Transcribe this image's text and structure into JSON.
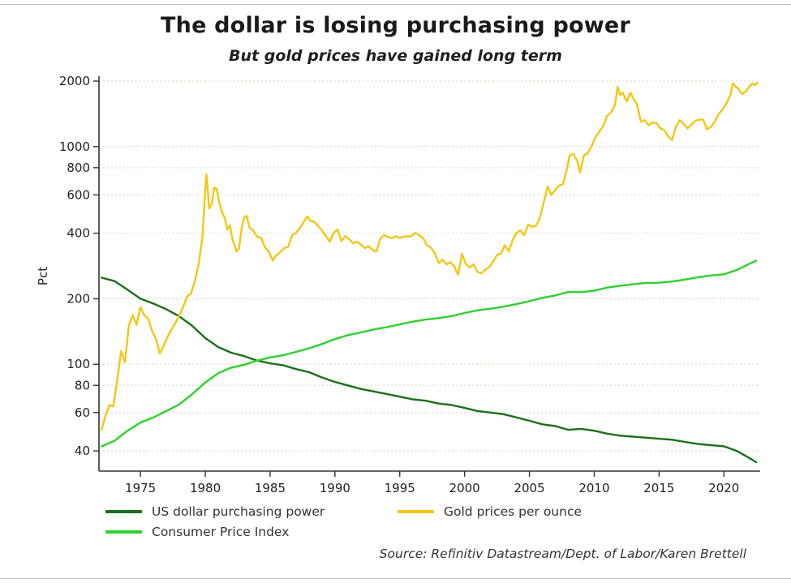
{
  "chart_data": {
    "type": "line",
    "title": "The dollar is losing purchasing power",
    "subtitle": "But gold prices have gained long term",
    "ylabel": "Pct",
    "y_scale": "log",
    "grid": "horizontal-dotted",
    "legend_position": "bottom",
    "source": "Source: Refinitiv Datastream/Dept. of Labor/Karen Brettell",
    "x_range": [
      1971.8,
      2022.8
    ],
    "y_range": [
      32.3,
      2000
    ],
    "y_ticks": [
      2000,
      1000,
      800,
      600,
      400,
      200,
      100,
      80,
      60,
      40
    ],
    "x_ticks": [
      1975,
      1980,
      1985,
      1990,
      1995,
      2000,
      2005,
      2010,
      2015,
      2020
    ],
    "series": [
      {
        "name": "US dollar purchasing power",
        "color": "#1a701a",
        "points": [
          [
            1972,
            250
          ],
          [
            1973,
            241
          ],
          [
            1974,
            220
          ],
          [
            1975,
            200
          ],
          [
            1976,
            190
          ],
          [
            1977,
            179
          ],
          [
            1978,
            166
          ],
          [
            1979,
            150
          ],
          [
            1980,
            132
          ],
          [
            1981,
            120
          ],
          [
            1982,
            113
          ],
          [
            1983,
            109
          ],
          [
            1984,
            104
          ],
          [
            1985,
            101
          ],
          [
            1986,
            99
          ],
          [
            1987,
            95
          ],
          [
            1988,
            92
          ],
          [
            1989,
            87
          ],
          [
            1990,
            83
          ],
          [
            1991,
            80
          ],
          [
            1992,
            77
          ],
          [
            1993,
            75
          ],
          [
            1994,
            73
          ],
          [
            1995,
            71
          ],
          [
            1996,
            69
          ],
          [
            1997,
            68
          ],
          [
            1998,
            66
          ],
          [
            1999,
            65
          ],
          [
            2000,
            63
          ],
          [
            2001,
            61
          ],
          [
            2002,
            60
          ],
          [
            2003,
            59
          ],
          [
            2004,
            57
          ],
          [
            2005,
            55
          ],
          [
            2006,
            53
          ],
          [
            2007,
            52
          ],
          [
            2008,
            50
          ],
          [
            2009,
            50.5
          ],
          [
            2010,
            49.5
          ],
          [
            2011,
            48
          ],
          [
            2012,
            47
          ],
          [
            2013,
            46.5
          ],
          [
            2014,
            46
          ],
          [
            2015,
            45.5
          ],
          [
            2016,
            45
          ],
          [
            2017,
            44
          ],
          [
            2018,
            43
          ],
          [
            2019,
            42.5
          ],
          [
            2020,
            42
          ],
          [
            2021,
            40
          ],
          [
            2022,
            37
          ],
          [
            2022.5,
            35.5
          ]
        ]
      },
      {
        "name": "Consumer Price Index",
        "color": "#2ed12e",
        "points": [
          [
            1972,
            42
          ],
          [
            1973,
            44.5
          ],
          [
            1974,
            49.5
          ],
          [
            1975,
            54
          ],
          [
            1976,
            57
          ],
          [
            1977,
            61
          ],
          [
            1978,
            65.5
          ],
          [
            1979,
            73
          ],
          [
            1980,
            82.5
          ],
          [
            1981,
            91
          ],
          [
            1982,
            96.5
          ],
          [
            1983,
            99.5
          ],
          [
            1984,
            104
          ],
          [
            1985,
            107.5
          ],
          [
            1986,
            110
          ],
          [
            1987,
            114
          ],
          [
            1988,
            118.5
          ],
          [
            1989,
            124
          ],
          [
            1990,
            130.5
          ],
          [
            1991,
            136
          ],
          [
            1992,
            140
          ],
          [
            1993,
            144.5
          ],
          [
            1994,
            148
          ],
          [
            1995,
            152.5
          ],
          [
            1996,
            157
          ],
          [
            1997,
            160.5
          ],
          [
            1998,
            163
          ],
          [
            1999,
            166.5
          ],
          [
            2000,
            172
          ],
          [
            2001,
            177
          ],
          [
            2002,
            180
          ],
          [
            2003,
            184
          ],
          [
            2004,
            189
          ],
          [
            2005,
            195
          ],
          [
            2006,
            202
          ],
          [
            2007,
            207
          ],
          [
            2008,
            215
          ],
          [
            2009,
            214.5
          ],
          [
            2010,
            218
          ],
          [
            2011,
            225
          ],
          [
            2012,
            229.5
          ],
          [
            2013,
            233
          ],
          [
            2014,
            236.5
          ],
          [
            2015,
            237
          ],
          [
            2016,
            240
          ],
          [
            2017,
            245
          ],
          [
            2018,
            251
          ],
          [
            2019,
            256
          ],
          [
            2020,
            259
          ],
          [
            2021,
            271
          ],
          [
            2022,
            290
          ],
          [
            2022.5,
            299
          ]
        ]
      },
      {
        "name": "Gold prices per ounce",
        "color": "#f3c713",
        "points": [
          [
            1972.0,
            50
          ],
          [
            1972.3,
            58
          ],
          [
            1972.6,
            65
          ],
          [
            1972.9,
            64
          ],
          [
            1973.2,
            84
          ],
          [
            1973.5,
            115
          ],
          [
            1973.8,
            102
          ],
          [
            1974.1,
            150
          ],
          [
            1974.4,
            168
          ],
          [
            1974.7,
            152
          ],
          [
            1975.0,
            183
          ],
          [
            1975.3,
            168
          ],
          [
            1975.6,
            162
          ],
          [
            1975.9,
            142
          ],
          [
            1976.2,
            131
          ],
          [
            1976.5,
            112
          ],
          [
            1976.8,
            122
          ],
          [
            1977.1,
            134
          ],
          [
            1977.4,
            145
          ],
          [
            1977.7,
            155
          ],
          [
            1978.0,
            168
          ],
          [
            1978.3,
            184
          ],
          [
            1978.6,
            205
          ],
          [
            1978.9,
            212
          ],
          [
            1979.2,
            242
          ],
          [
            1979.5,
            290
          ],
          [
            1979.8,
            392
          ],
          [
            1980.0,
            640
          ],
          [
            1980.1,
            745
          ],
          [
            1980.3,
            520
          ],
          [
            1980.5,
            545
          ],
          [
            1980.7,
            650
          ],
          [
            1980.9,
            635
          ],
          [
            1981.1,
            545
          ],
          [
            1981.3,
            500
          ],
          [
            1981.5,
            470
          ],
          [
            1981.7,
            415
          ],
          [
            1981.9,
            435
          ],
          [
            1982.1,
            375
          ],
          [
            1982.4,
            330
          ],
          [
            1982.6,
            340
          ],
          [
            1982.8,
            420
          ],
          [
            1983.0,
            475
          ],
          [
            1983.2,
            480
          ],
          [
            1983.4,
            425
          ],
          [
            1983.7,
            412
          ],
          [
            1984.0,
            385
          ],
          [
            1984.3,
            382
          ],
          [
            1984.6,
            345
          ],
          [
            1984.9,
            330
          ],
          [
            1985.2,
            300
          ],
          [
            1985.5,
            318
          ],
          [
            1985.8,
            328
          ],
          [
            1986.1,
            342
          ],
          [
            1986.4,
            346
          ],
          [
            1986.7,
            392
          ],
          [
            1987.0,
            402
          ],
          [
            1987.3,
            422
          ],
          [
            1987.6,
            452
          ],
          [
            1987.9,
            478
          ],
          [
            1988.1,
            455
          ],
          [
            1988.4,
            452
          ],
          [
            1988.7,
            432
          ],
          [
            1989.0,
            412
          ],
          [
            1989.3,
            388
          ],
          [
            1989.6,
            366
          ],
          [
            1989.9,
            402
          ],
          [
            1990.2,
            416
          ],
          [
            1990.5,
            368
          ],
          [
            1990.8,
            388
          ],
          [
            1991.1,
            376
          ],
          [
            1991.4,
            360
          ],
          [
            1991.7,
            366
          ],
          [
            1992.0,
            355
          ],
          [
            1992.3,
            342
          ],
          [
            1992.6,
            348
          ],
          [
            1992.9,
            335
          ],
          [
            1993.2,
            330
          ],
          [
            1993.5,
            378
          ],
          [
            1993.8,
            392
          ],
          [
            1994.1,
            384
          ],
          [
            1994.4,
            379
          ],
          [
            1994.7,
            388
          ],
          [
            1995.0,
            380
          ],
          [
            1995.3,
            386
          ],
          [
            1995.6,
            387
          ],
          [
            1995.9,
            388
          ],
          [
            1996.2,
            402
          ],
          [
            1996.5,
            392
          ],
          [
            1996.8,
            380
          ],
          [
            1997.1,
            352
          ],
          [
            1997.4,
            344
          ],
          [
            1997.7,
            324
          ],
          [
            1998.0,
            292
          ],
          [
            1998.3,
            302
          ],
          [
            1998.6,
            288
          ],
          [
            1998.9,
            294
          ],
          [
            1999.2,
            282
          ],
          [
            1999.5,
            258
          ],
          [
            1999.8,
            322
          ],
          [
            2000.1,
            288
          ],
          [
            2000.4,
            278
          ],
          [
            2000.7,
            288
          ],
          [
            2001.0,
            266
          ],
          [
            2001.3,
            262
          ],
          [
            2001.6,
            272
          ],
          [
            2001.9,
            279
          ],
          [
            2002.2,
            296
          ],
          [
            2002.5,
            318
          ],
          [
            2002.8,
            322
          ],
          [
            2003.1,
            352
          ],
          [
            2003.4,
            330
          ],
          [
            2003.7,
            372
          ],
          [
            2004.0,
            402
          ],
          [
            2004.3,
            412
          ],
          [
            2004.6,
            392
          ],
          [
            2004.9,
            438
          ],
          [
            2005.2,
            428
          ],
          [
            2005.5,
            432
          ],
          [
            2005.8,
            468
          ],
          [
            2006.1,
            552
          ],
          [
            2006.4,
            655
          ],
          [
            2006.7,
            600
          ],
          [
            2007.0,
            635
          ],
          [
            2007.3,
            662
          ],
          [
            2007.6,
            672
          ],
          [
            2007.9,
            790
          ],
          [
            2008.1,
            912
          ],
          [
            2008.4,
            925
          ],
          [
            2008.7,
            858
          ],
          [
            2008.9,
            762
          ],
          [
            2009.2,
            912
          ],
          [
            2009.5,
            932
          ],
          [
            2009.8,
            1005
          ],
          [
            2010.1,
            1105
          ],
          [
            2010.4,
            1172
          ],
          [
            2010.7,
            1242
          ],
          [
            2011.0,
            1388
          ],
          [
            2011.3,
            1438
          ],
          [
            2011.6,
            1552
          ],
          [
            2011.8,
            1885
          ],
          [
            2012.0,
            1725
          ],
          [
            2012.2,
            1768
          ],
          [
            2012.5,
            1608
          ],
          [
            2012.8,
            1772
          ],
          [
            2013.0,
            1672
          ],
          [
            2013.3,
            1562
          ],
          [
            2013.6,
            1302
          ],
          [
            2013.9,
            1322
          ],
          [
            2014.2,
            1252
          ],
          [
            2014.5,
            1292
          ],
          [
            2014.8,
            1282
          ],
          [
            2015.1,
            1212
          ],
          [
            2015.4,
            1192
          ],
          [
            2015.7,
            1112
          ],
          [
            2016.0,
            1072
          ],
          [
            2016.3,
            1232
          ],
          [
            2016.6,
            1322
          ],
          [
            2016.9,
            1272
          ],
          [
            2017.2,
            1212
          ],
          [
            2017.5,
            1262
          ],
          [
            2017.8,
            1312
          ],
          [
            2018.1,
            1332
          ],
          [
            2018.4,
            1332
          ],
          [
            2018.7,
            1202
          ],
          [
            2019.0,
            1232
          ],
          [
            2019.3,
            1302
          ],
          [
            2019.6,
            1412
          ],
          [
            2019.9,
            1482
          ],
          [
            2020.2,
            1582
          ],
          [
            2020.5,
            1722
          ],
          [
            2020.7,
            1952
          ],
          [
            2020.9,
            1888
          ],
          [
            2021.1,
            1848
          ],
          [
            2021.4,
            1742
          ],
          [
            2021.7,
            1792
          ],
          [
            2022.0,
            1898
          ],
          [
            2022.2,
            1948
          ],
          [
            2022.4,
            1918
          ],
          [
            2022.6,
            1962
          ]
        ]
      }
    ]
  }
}
